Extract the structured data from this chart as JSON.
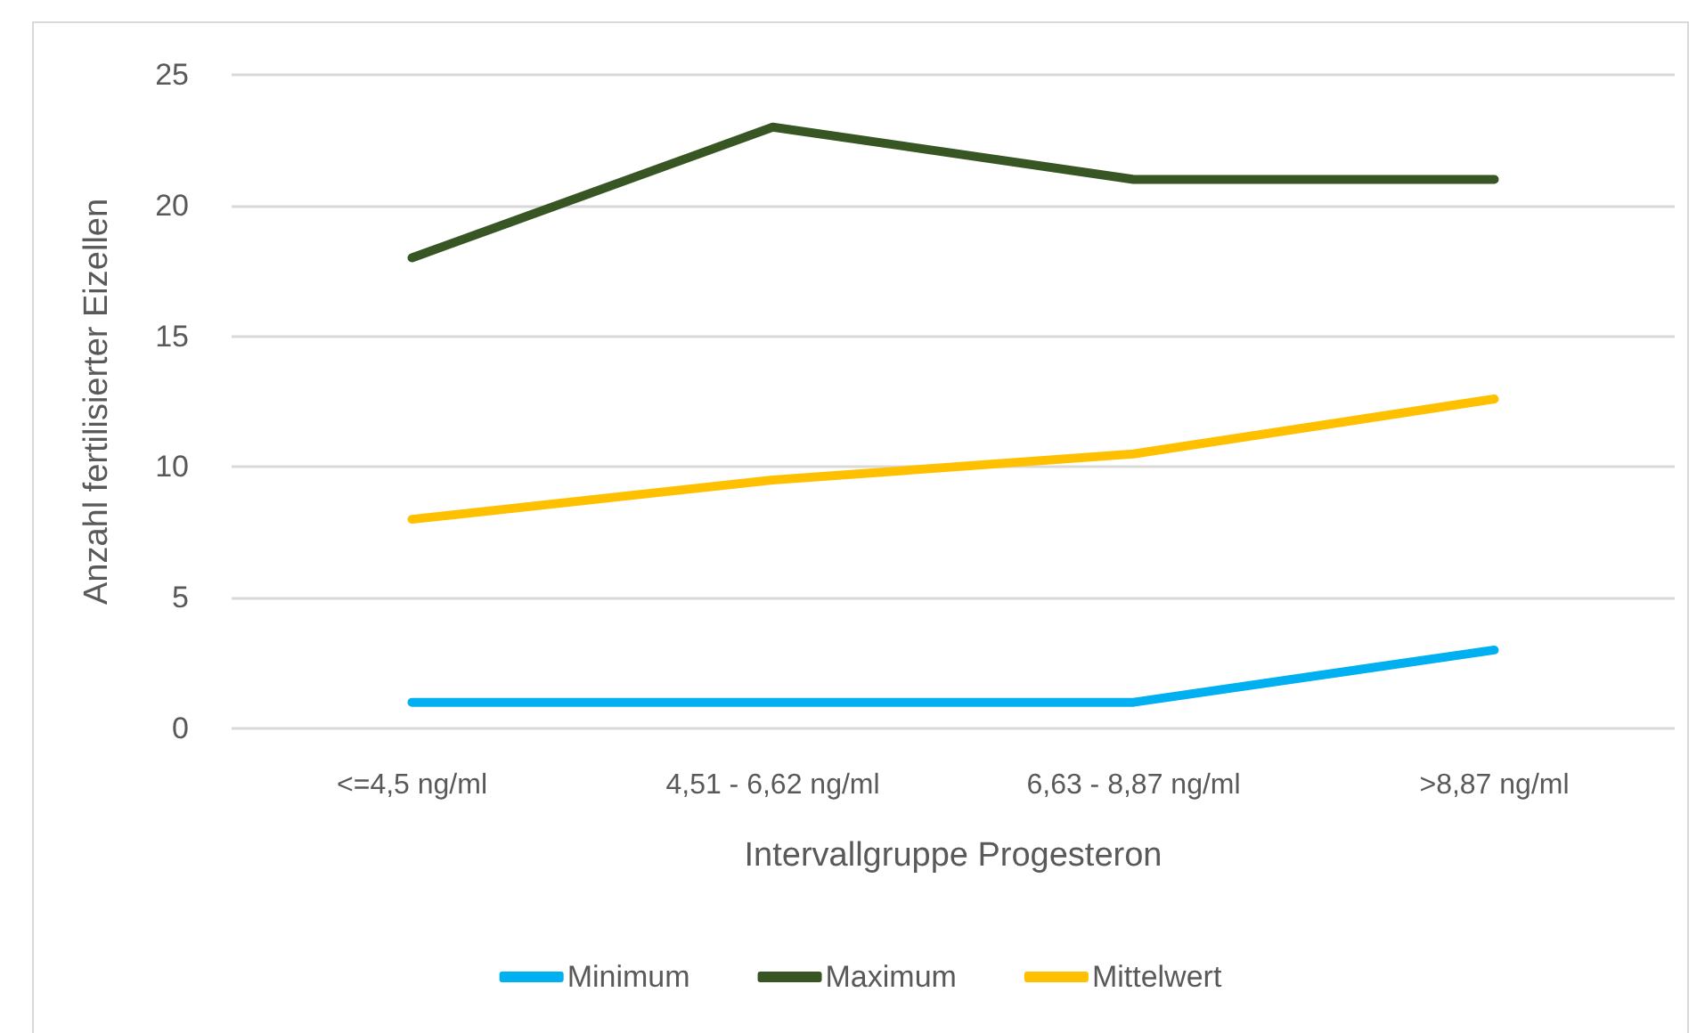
{
  "chart_data": {
    "type": "line",
    "xlabel": "Intervallgruppe Progesteron",
    "ylabel": "Anzahl fertilisierter Eizellen",
    "categories": [
      "<=4,5 ng/ml",
      "4,51 - 6,62 ng/ml",
      "6,63 - 8,87 ng/ml",
      ">8,87 ng/ml"
    ],
    "series": [
      {
        "name": "Minimum",
        "color": "#00b0f0",
        "values": [
          1,
          1,
          1,
          3
        ]
      },
      {
        "name": "Maximum",
        "color": "#375623",
        "values": [
          18,
          23,
          21,
          21
        ]
      },
      {
        "name": "Mittelwert",
        "color": "#ffc000",
        "values": [
          8,
          9.5,
          10.5,
          12.6
        ]
      }
    ],
    "ylim": [
      0,
      25
    ],
    "yticks": [
      0,
      5,
      10,
      15,
      20,
      25
    ],
    "grid": "y",
    "legend": "bottom",
    "marker": "none",
    "line_style": "solid"
  }
}
